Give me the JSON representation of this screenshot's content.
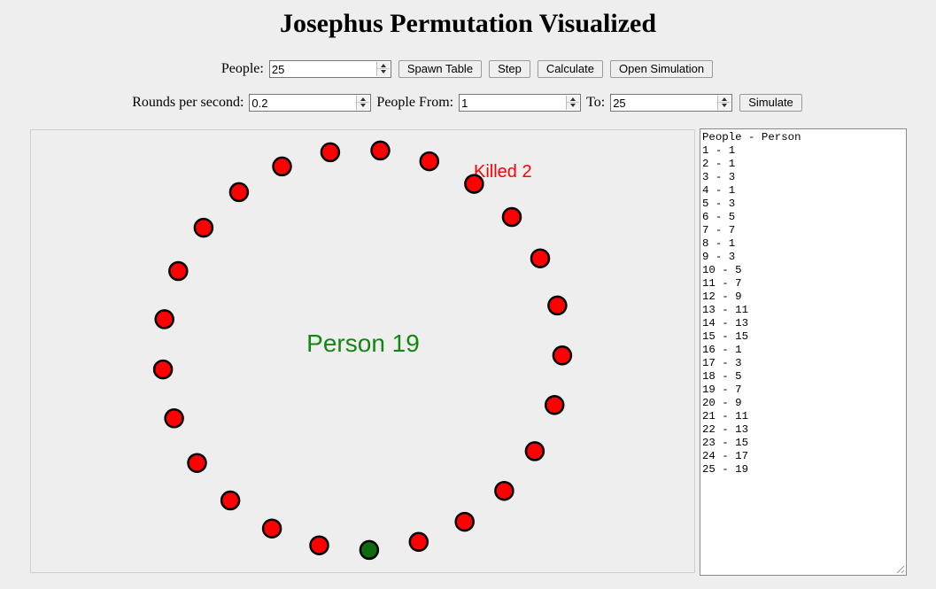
{
  "title": "Josephus Permutation Visualized",
  "controls": {
    "people_label": "People:",
    "people_value": "25",
    "spawn_table_label": "Spawn Table",
    "step_label": "Step",
    "calculate_label": "Calculate",
    "open_simulation_label": "Open Simulation",
    "rounds_label": "Rounds per second:",
    "rounds_value": "0.2",
    "people_from_label": "People From:",
    "people_from_value": "1",
    "to_label": "To:",
    "to_value": "25",
    "simulate_label": "Simulate"
  },
  "simulation": {
    "center_text": "Person 19",
    "center_color": "#138613",
    "killed_text": "Killed 2",
    "killed_color": "#ff0000",
    "person_count": 25,
    "alive_color": "#ff0000",
    "highlight_color": "#0e6b0e",
    "highlight_index": 19,
    "killed_index": 2
  },
  "results": {
    "header": "People - Person",
    "rows": [
      "1 - 1",
      "2 - 1",
      "3 - 3",
      "4 - 1",
      "5 - 3",
      "6 - 5",
      "7 - 7",
      "8 - 1",
      "9 - 3",
      "10 - 5",
      "11 - 7",
      "12 - 9",
      "13 - 11",
      "14 - 13",
      "15 - 15",
      "16 - 1",
      "17 - 3",
      "18 - 5",
      "19 - 7",
      "20 - 9",
      "21 - 11",
      "22 - 13",
      "23 - 15",
      "24 - 17",
      "25 - 19"
    ]
  }
}
